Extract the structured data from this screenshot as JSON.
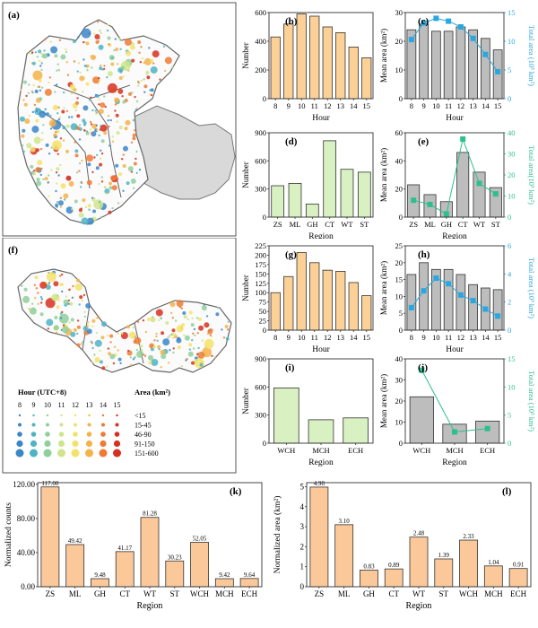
{
  "maps": {
    "a": {
      "label": "(a)"
    },
    "f": {
      "label": "(f)"
    },
    "legend": {
      "hour_title": "Hour (UTC+8)",
      "area_title": "Area (km²)",
      "hours": [
        "8",
        "9",
        "10",
        "11",
        "12",
        "13",
        "14",
        "15"
      ],
      "hour_colors": [
        "#3a86c8",
        "#4fb3c4",
        "#8fcf9a",
        "#cfe58b",
        "#f3e26a",
        "#f6b24a",
        "#ee7a34",
        "#d7301f"
      ],
      "area_classes": [
        "<15",
        "15-45",
        "46-90",
        "91-150",
        "151-600"
      ]
    }
  },
  "chart_data": [
    {
      "id": "b",
      "label": "(b)",
      "type": "bar",
      "categories": [
        "8",
        "9",
        "10",
        "11",
        "12",
        "13",
        "14",
        "15"
      ],
      "values": [
        430,
        520,
        590,
        575,
        500,
        460,
        360,
        285
      ],
      "xlabel": "Hour",
      "ylabel": "Number",
      "ylim": [
        0,
        600
      ],
      "yticks": [
        0,
        200,
        400,
        600
      ],
      "bar_color": "#fcd197"
    },
    {
      "id": "c",
      "label": "(c)",
      "type": "bar+line",
      "categories": [
        "8",
        "9",
        "10",
        "11",
        "12",
        "13",
        "14",
        "15"
      ],
      "values": [
        24,
        26,
        23.5,
        23.5,
        25,
        24,
        21,
        17
      ],
      "line_values": [
        10.3,
        13.2,
        14,
        13.5,
        12.5,
        10.5,
        7.7,
        4.7
      ],
      "xlabel": "Hour",
      "ylabel": "Mean area (km²)",
      "ylabel2": "Total area (10³ km²)",
      "ylim": [
        0,
        30
      ],
      "yticks": [
        0,
        10,
        20,
        30
      ],
      "y2lim": [
        0,
        15
      ],
      "y2ticks": [
        0,
        5,
        10,
        15
      ],
      "bar_color": "#bdbdbd",
      "line_color": "#2aa7df"
    },
    {
      "id": "d",
      "label": "(d)",
      "type": "bar",
      "categories": [
        "ZS",
        "ML",
        "GH",
        "CT",
        "WT",
        "ST"
      ],
      "values": [
        335,
        360,
        140,
        815,
        510,
        480
      ],
      "xlabel": "Region",
      "ylabel": "Number",
      "ylim": [
        0,
        900
      ],
      "yticks": [
        0,
        300,
        600,
        900
      ],
      "bar_color": "#d9f0c2"
    },
    {
      "id": "e",
      "label": "(e)",
      "type": "bar+line",
      "categories": [
        "ZS",
        "ML",
        "GH",
        "CT",
        "WT",
        "ST"
      ],
      "values": [
        23,
        16,
        11,
        46,
        32,
        21
      ],
      "line_values": [
        8,
        6,
        1.5,
        37,
        16,
        11
      ],
      "xlabel": "Region",
      "ylabel": "Mean area (km²)",
      "ylabel2": "Total area(10³ km²)",
      "ylim": [
        0,
        60
      ],
      "yticks": [
        0,
        20,
        40,
        60
      ],
      "y2lim": [
        0,
        40
      ],
      "y2ticks": [
        0,
        10,
        20,
        30,
        40
      ],
      "bar_color": "#bdbdbd",
      "line_color": "#2dbf8f"
    },
    {
      "id": "g",
      "label": "(g)",
      "type": "bar",
      "categories": [
        "8",
        "9",
        "10",
        "11",
        "12",
        "13",
        "14",
        "15"
      ],
      "values": [
        100,
        143,
        207,
        180,
        160,
        157,
        127,
        92
      ],
      "xlabel": "Hour",
      "ylabel": "Number",
      "ylim": [
        0,
        225
      ],
      "yticks": [
        0,
        25,
        50,
        75,
        100,
        125,
        150,
        175,
        200,
        225
      ],
      "bar_color": "#fcd197"
    },
    {
      "id": "h",
      "label": "(h)",
      "type": "bar+line",
      "categories": [
        "8",
        "9",
        "10",
        "11",
        "12",
        "13",
        "14",
        "15"
      ],
      "values": [
        16.5,
        20,
        18,
        18,
        16.5,
        13.5,
        12.5,
        12
      ],
      "line_values": [
        1.6,
        2.8,
        3.7,
        3.3,
        2.5,
        2.1,
        1.5,
        1
      ],
      "xlabel": "Hour",
      "ylabel": "Mean area (km²)",
      "ylabel2": "Total area (10³ km²)",
      "ylim": [
        0,
        25
      ],
      "yticks": [
        0,
        5,
        10,
        15,
        20,
        25
      ],
      "y2lim": [
        0,
        6
      ],
      "y2ticks": [
        0,
        2,
        4,
        6
      ],
      "bar_color": "#bdbdbd",
      "line_color": "#2aa7df"
    },
    {
      "id": "i",
      "label": "(i)",
      "type": "bar",
      "categories": [
        "WCH",
        "MCH",
        "ECH"
      ],
      "values": [
        590,
        250,
        270
      ],
      "xlabel": "Region",
      "ylabel": "Number",
      "ylim": [
        0,
        900
      ],
      "yticks": [
        0,
        300,
        600,
        900
      ],
      "bar_color": "#d9f0c2"
    },
    {
      "id": "j",
      "label": "(j)",
      "type": "bar+line",
      "categories": [
        "WCH",
        "MCH",
        "ECH"
      ],
      "values": [
        22,
        9,
        10.5
      ],
      "line_values": [
        13,
        2,
        2.6
      ],
      "xlabel": "Region",
      "ylabel": "Mean area (km²)",
      "ylabel2": "Total area (10³ km²)",
      "ylim": [
        0,
        40
      ],
      "yticks": [
        0,
        10,
        20,
        30,
        40
      ],
      "y2lim": [
        0,
        15
      ],
      "y2ticks": [
        0,
        5,
        10,
        15
      ],
      "bar_color": "#bdbdbd",
      "line_color": "#2dbf8f"
    },
    {
      "id": "k",
      "label": "(k)",
      "type": "bar",
      "categories": [
        "ZS",
        "ML",
        "GH",
        "CT",
        "WT",
        "ST",
        "WCH",
        "MCH",
        "ECH"
      ],
      "values": [
        117.0,
        49.42,
        9.48,
        41.17,
        81.28,
        30.23,
        52.05,
        9.42,
        9.64
      ],
      "data_labels": [
        "117.00",
        "49.42",
        "9.48",
        "41.17",
        "81.28",
        "30.23",
        "52.05",
        "9.42",
        "9.64"
      ],
      "xlabel": "Region",
      "ylabel": "Normalized counts",
      "ylim": [
        0,
        122
      ],
      "yticks": [
        0,
        40,
        80,
        120
      ],
      "ytick_labels": [
        "0.00",
        "40.00",
        "80.00",
        "120.00"
      ],
      "bar_color": "#fbc89a"
    },
    {
      "id": "l",
      "label": "(l)",
      "type": "bar",
      "categories": [
        "ZS",
        "ML",
        "GH",
        "CT",
        "WT",
        "ST",
        "WCH",
        "MCH",
        "ECH"
      ],
      "values": [
        4.98,
        3.1,
        0.83,
        0.89,
        2.48,
        1.39,
        2.33,
        1.04,
        0.91
      ],
      "data_labels": [
        "4.98",
        "3.10",
        "0.83",
        "0.89",
        "2.48",
        "1.39",
        "2.33",
        "1.04",
        "0.91"
      ],
      "xlabel": "Region",
      "ylabel": "Normalized area (km²)",
      "ylim": [
        0,
        5.2
      ],
      "yticks": [
        0,
        1,
        2,
        3,
        4,
        5
      ],
      "bar_color": "#fbc89a"
    }
  ]
}
